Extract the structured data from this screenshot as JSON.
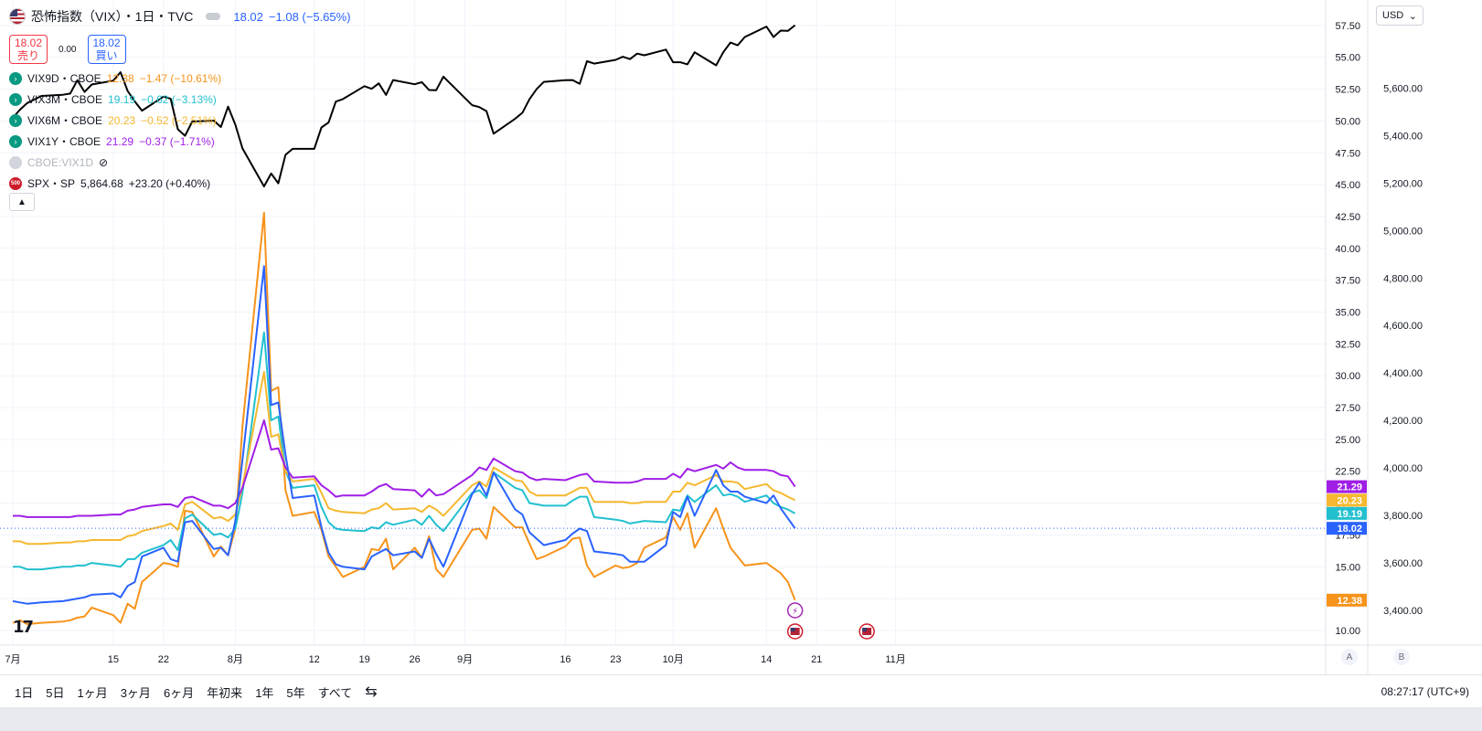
{
  "header": {
    "title": "恐怖指数（VIX）・1日・TVC",
    "value": "18.02",
    "change": "−1.08 (−5.65%)",
    "sell_price": "18.02",
    "sell_label": "売り",
    "spread": "0.00",
    "buy_price": "18.02",
    "buy_label": "買い"
  },
  "legend": [
    {
      "name": "VIX9D・CBOE",
      "value": "12.38",
      "change": "−1.47 (−10.61%)",
      "color": "#f7931a"
    },
    {
      "name": "VIX3M・CBOE",
      "value": "19.19",
      "change": "−0.62 (−3.13%)",
      "color": "#22c0cf"
    },
    {
      "name": "VIX6M・CBOE",
      "value": "20.23",
      "change": "−0.52 (−2.51%)",
      "color": "#f5b82e"
    },
    {
      "name": "VIX1Y・CBOE",
      "value": "21.29",
      "change": "−0.37 (−1.71%)",
      "color": "#a01ee6"
    }
  ],
  "legend_hidden": "CBOE:VIX1D",
  "legend_spx": {
    "name": "SPX・SP",
    "value": "5,864.68",
    "change": "+23.20 (+0.40%)",
    "badge": "500"
  },
  "currency": "USD",
  "time_ranges": [
    "1日",
    "5日",
    "1ヶ月",
    "3ヶ月",
    "6ヶ月",
    "年初来",
    "1年",
    "5年",
    "すべて"
  ],
  "clock": "08:27:17 (UTC+9)",
  "scale_buttons": [
    "A",
    "B"
  ],
  "chart_data": {
    "type": "line",
    "x": [
      "2024-07-01",
      "2024-07-02",
      "2024-07-03",
      "2024-07-05",
      "2024-07-08",
      "2024-07-09",
      "2024-07-10",
      "2024-07-11",
      "2024-07-12",
      "2024-07-15",
      "2024-07-16",
      "2024-07-17",
      "2024-07-18",
      "2024-07-19",
      "2024-07-22",
      "2024-07-23",
      "2024-07-24",
      "2024-07-25",
      "2024-07-26",
      "2024-07-29",
      "2024-07-30",
      "2024-07-31",
      "2024-08-01",
      "2024-08-02",
      "2024-08-05",
      "2024-08-06",
      "2024-08-07",
      "2024-08-08",
      "2024-08-09",
      "2024-08-12",
      "2024-08-13",
      "2024-08-14",
      "2024-08-15",
      "2024-08-16",
      "2024-08-19",
      "2024-08-20",
      "2024-08-21",
      "2024-08-22",
      "2024-08-23",
      "2024-08-26",
      "2024-08-27",
      "2024-08-28",
      "2024-08-29",
      "2024-08-30",
      "2024-09-03",
      "2024-09-04",
      "2024-09-05",
      "2024-09-06",
      "2024-09-09",
      "2024-09-10",
      "2024-09-11",
      "2024-09-12",
      "2024-09-13",
      "2024-09-16",
      "2024-09-17",
      "2024-09-18",
      "2024-09-19",
      "2024-09-20",
      "2024-09-23",
      "2024-09-24",
      "2024-09-25",
      "2024-09-26",
      "2024-09-27",
      "2024-09-30",
      "2024-10-01",
      "2024-10-02",
      "2024-10-03",
      "2024-10-04",
      "2024-10-07",
      "2024-10-08",
      "2024-10-09",
      "2024-10-10",
      "2024-10-11",
      "2024-10-14",
      "2024-10-15",
      "2024-10-16",
      "2024-10-17",
      "2024-10-18"
    ],
    "series": [
      {
        "name": "VIX9D・CBOE",
        "color": "#f7931a",
        "axis": "left",
        "values": [
          10.6,
          10.8,
          10.5,
          10.6,
          10.7,
          10.8,
          11.0,
          11.1,
          11.8,
          11.2,
          10.6,
          12.1,
          11.7,
          13.8,
          15.3,
          15.2,
          15.0,
          19.4,
          19.3,
          15.8,
          16.6,
          15.9,
          18.0,
          26.0,
          42.8,
          28.8,
          29.1,
          21.0,
          19.0,
          19.3,
          17.9,
          15.8,
          15.0,
          14.2,
          15.0,
          16.4,
          16.3,
          17.2,
          14.8,
          16.5,
          15.7,
          17.4,
          14.8,
          14.2,
          17.9,
          18.0,
          17.2,
          19.7,
          18.1,
          18.1,
          16.8,
          15.6,
          15.8,
          16.6,
          17.2,
          17.3,
          15.1,
          14.2,
          15.1,
          14.9,
          15.0,
          15.3,
          16.5,
          17.3,
          18.9,
          17.9,
          19.2,
          16.5,
          19.6,
          18.0,
          16.5,
          15.8,
          15.1,
          15.3,
          14.9,
          14.5,
          13.8,
          12.38
        ]
      },
      {
        "name": "VIX3M・CBOE",
        "color": "#22c0cf",
        "axis": "left",
        "values": [
          15.0,
          15.0,
          14.8,
          14.8,
          15.0,
          15.0,
          15.1,
          15.1,
          15.3,
          15.1,
          15.0,
          15.6,
          15.6,
          16.1,
          16.7,
          17.1,
          16.3,
          18.8,
          19.1,
          17.5,
          17.6,
          17.3,
          18.0,
          20.8,
          33.4,
          26.5,
          26.8,
          22.5,
          21.2,
          21.4,
          19.7,
          18.5,
          18.0,
          17.9,
          17.8,
          18.1,
          18.0,
          18.5,
          18.3,
          18.7,
          18.3,
          19.0,
          18.3,
          17.8,
          20.8,
          21.0,
          20.4,
          22.4,
          21.2,
          21.0,
          20.0,
          19.9,
          19.8,
          19.8,
          20.2,
          20.5,
          20.5,
          18.9,
          18.7,
          18.6,
          18.4,
          18.5,
          18.6,
          18.5,
          19.5,
          19.4,
          20.6,
          20.1,
          21.4,
          20.6,
          20.7,
          20.5,
          20.1,
          20.6,
          20.0,
          19.7,
          19.5,
          19.19
        ]
      },
      {
        "name": "VIX6M・CBOE",
        "color": "#f5b82e",
        "axis": "left",
        "values": [
          17.0,
          17.0,
          16.8,
          16.8,
          16.9,
          16.9,
          17.0,
          17.0,
          17.1,
          17.1,
          17.1,
          17.4,
          17.5,
          17.8,
          18.2,
          18.4,
          17.9,
          19.9,
          20.1,
          18.8,
          18.9,
          18.6,
          19.1,
          21.3,
          30.3,
          25.2,
          25.4,
          22.5,
          21.7,
          21.9,
          20.8,
          19.6,
          19.4,
          19.3,
          19.2,
          19.5,
          19.6,
          20.0,
          19.5,
          19.6,
          19.3,
          19.8,
          19.5,
          19.0,
          21.4,
          21.7,
          21.3,
          22.8,
          21.8,
          21.7,
          20.9,
          20.6,
          20.6,
          20.6,
          20.9,
          21.2,
          21.2,
          20.1,
          20.1,
          20.1,
          20.0,
          20.0,
          20.1,
          20.1,
          20.9,
          20.9,
          21.6,
          21.4,
          22.2,
          21.7,
          21.7,
          21.6,
          21.1,
          21.5,
          21.0,
          20.8,
          20.5,
          20.23
        ]
      },
      {
        "name": "VIX1Y・CBOE",
        "color": "#a01ee6",
        "axis": "left",
        "values": [
          19.0,
          19.0,
          18.9,
          18.9,
          18.9,
          18.9,
          19.0,
          19.0,
          19.0,
          19.1,
          19.1,
          19.4,
          19.5,
          19.7,
          19.9,
          19.9,
          19.7,
          20.4,
          20.5,
          19.8,
          19.8,
          19.6,
          20.0,
          21.2,
          26.5,
          24.2,
          24.3,
          22.8,
          22.0,
          22.1,
          21.4,
          21.0,
          20.5,
          20.6,
          20.6,
          20.9,
          21.3,
          21.5,
          21.1,
          21.0,
          20.5,
          21.1,
          20.6,
          20.7,
          22.2,
          22.8,
          22.6,
          23.5,
          22.5,
          22.4,
          22.0,
          21.8,
          21.9,
          21.8,
          22.0,
          22.2,
          22.3,
          21.7,
          21.6,
          21.6,
          21.6,
          21.7,
          21.9,
          21.9,
          22.3,
          22.0,
          22.7,
          22.5,
          23.0,
          22.7,
          23.2,
          22.8,
          22.6,
          22.6,
          22.5,
          22.2,
          22.1,
          21.29
        ]
      },
      {
        "name": "恐怖指数（VIX）",
        "color": "#2962ff",
        "axis": "left",
        "values": [
          12.3,
          12.2,
          12.1,
          12.2,
          12.3,
          12.4,
          12.5,
          12.6,
          12.8,
          12.9,
          12.6,
          13.5,
          13.8,
          15.8,
          16.5,
          15.6,
          15.4,
          18.5,
          18.6,
          16.4,
          16.5,
          15.9,
          18.6,
          23.4,
          38.6,
          27.7,
          27.9,
          23.8,
          20.4,
          20.6,
          18.1,
          16.1,
          15.2,
          15.0,
          14.8,
          15.8,
          16.1,
          16.4,
          15.9,
          16.2,
          15.7,
          17.2,
          16.0,
          15.0,
          20.7,
          21.6,
          20.6,
          22.4,
          19.5,
          19.1,
          17.7,
          17.2,
          16.7,
          17.1,
          17.6,
          18.0,
          17.8,
          16.2,
          16.0,
          15.9,
          15.4,
          15.4,
          15.4,
          16.7,
          19.3,
          18.9,
          20.5,
          19.0,
          22.6,
          21.4,
          20.9,
          20.9,
          20.5,
          20.0,
          20.6,
          19.6,
          18.8,
          18.02
        ]
      },
      {
        "name": "SPX・SP",
        "color": "#000000",
        "axis": "right",
        "values": [
          5475,
          5509,
          5537,
          5567,
          5572,
          5577,
          5633,
          5584,
          5615,
          5631,
          5667,
          5588,
          5544,
          5505,
          5564,
          5555,
          5427,
          5399,
          5459,
          5463,
          5436,
          5522,
          5446,
          5346,
          5186,
          5240,
          5199,
          5319,
          5344,
          5344,
          5434,
          5455,
          5543,
          5554,
          5608,
          5597,
          5620,
          5571,
          5634,
          5616,
          5625,
          5592,
          5591,
          5648,
          5528,
          5520,
          5503,
          5408,
          5471,
          5496,
          5554,
          5596,
          5626,
          5633,
          5634,
          5618,
          5713,
          5703,
          5719,
          5732,
          5722,
          5745,
          5738,
          5762,
          5709,
          5709,
          5700,
          5751,
          5696,
          5751,
          5792,
          5780,
          5815,
          5859,
          5815,
          5842,
          5841,
          5864.68
        ]
      }
    ],
    "left_axis": {
      "ticks": [
        "10.00",
        "12.50",
        "15.00",
        "17.50",
        "20.00",
        "22.50",
        "25.00",
        "27.50",
        "30.00",
        "32.50",
        "35.00",
        "37.50",
        "40.00",
        "42.50",
        "45.00",
        "47.50",
        "50.00",
        "52.50",
        "55.00",
        "57.50"
      ],
      "range": [
        8.85,
        59.5
      ]
    },
    "right_axis": {
      "ticks": [
        "3,400.00",
        "3,600.00",
        "3,800.00",
        "4,000.00",
        "4,200.00",
        "4,400.00",
        "4,600.00",
        "4,800.00",
        "5,000.00",
        "5,200.00",
        "5,400.00",
        "5,600.00"
      ],
      "range": [
        3254,
        5971
      ]
    },
    "x_ticks": [
      {
        "label": "7月",
        "date": "2024-07-01"
      },
      {
        "label": "15",
        "date": "2024-07-15"
      },
      {
        "label": "22",
        "date": "2024-07-22"
      },
      {
        "label": "8月",
        "date": "2024-08-01"
      },
      {
        "label": "12",
        "date": "2024-08-12"
      },
      {
        "label": "19",
        "date": "2024-08-19"
      },
      {
        "label": "26",
        "date": "2024-08-26"
      },
      {
        "label": "9月",
        "date": "2024-09-02"
      },
      {
        "label": "16",
        "date": "2024-09-16"
      },
      {
        "label": "23",
        "date": "2024-09-23"
      },
      {
        "label": "10月",
        "date": "2024-10-01"
      },
      {
        "label": "14",
        "date": "2024-10-14"
      },
      {
        "label": "21",
        "date": "2024-10-21"
      },
      {
        "label": "11月",
        "date": "2024-11-01"
      }
    ],
    "grid": true
  }
}
